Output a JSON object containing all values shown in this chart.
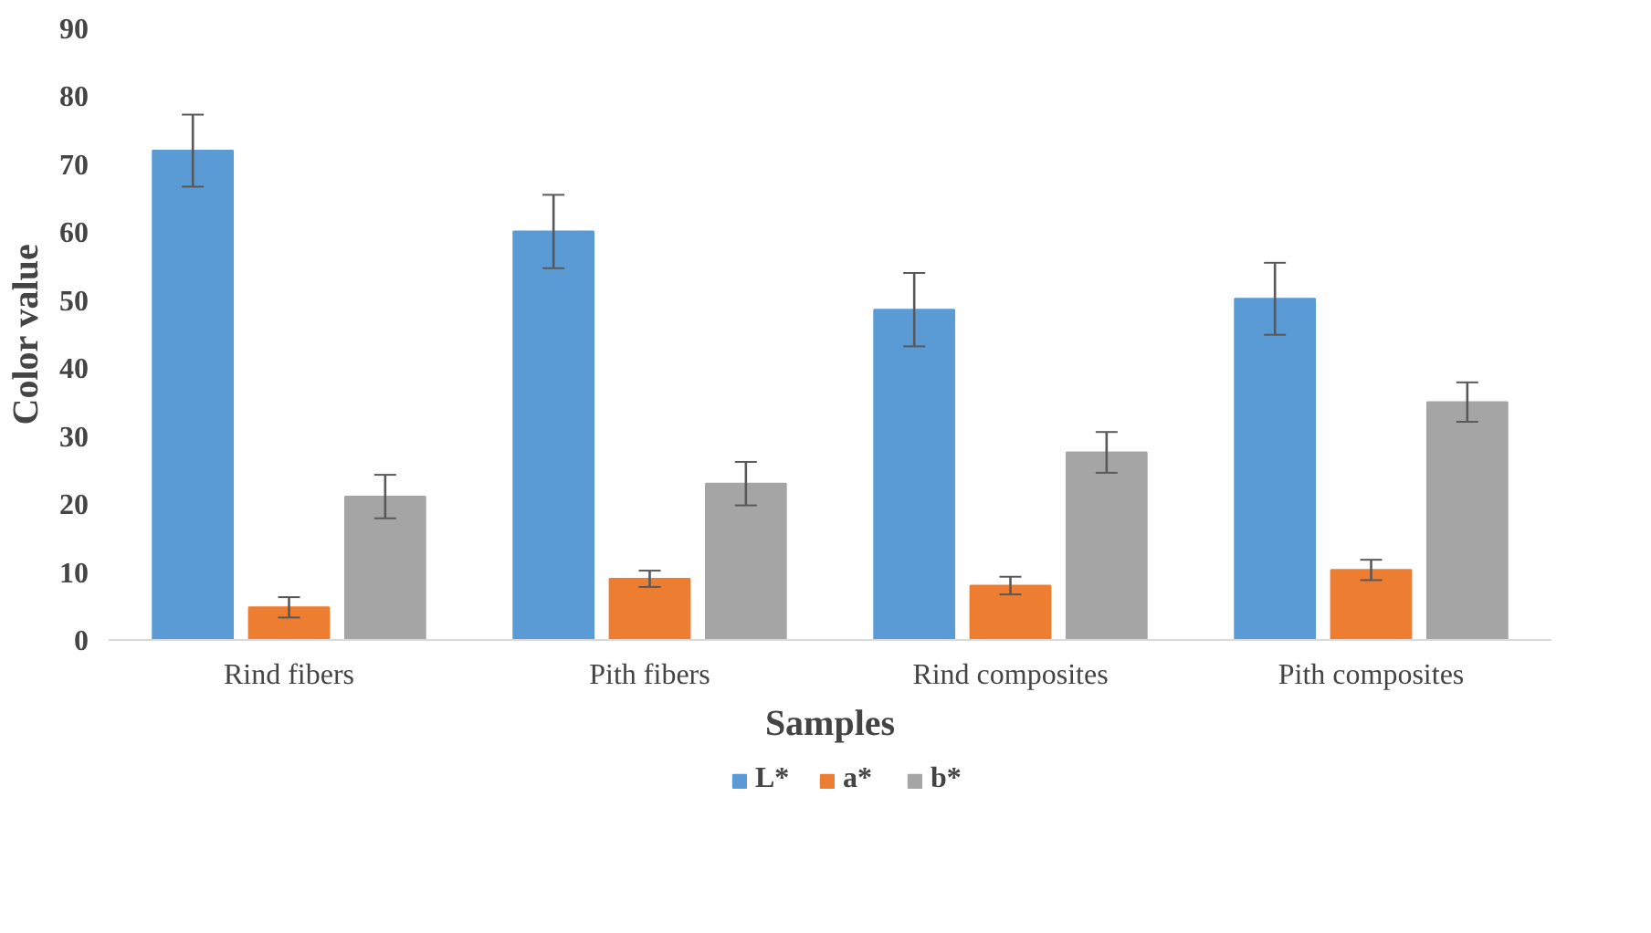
{
  "chart_data": {
    "type": "bar",
    "xlabel": "Samples",
    "ylabel": "Color value",
    "categories": [
      "Rind fibers",
      "Pith fibers",
      "Rind composites",
      "Pith composites"
    ],
    "series": [
      {
        "name": "L*",
        "color": "#5b9bd5",
        "values": [
          72.0,
          60.1,
          48.6,
          50.2
        ],
        "errors": [
          5.3,
          5.4,
          5.4,
          5.3
        ]
      },
      {
        "name": "a*",
        "color": "#ed7d31",
        "values": [
          4.8,
          9.0,
          8.0,
          10.3
        ],
        "errors": [
          1.5,
          1.2,
          1.3,
          1.5
        ]
      },
      {
        "name": "b*",
        "color": "#a5a5a5",
        "values": [
          21.1,
          23.0,
          27.6,
          35.0
        ],
        "errors": [
          3.2,
          3.2,
          3.0,
          2.9
        ]
      }
    ],
    "ylim": [
      0,
      90
    ],
    "yticks": [
      0,
      10,
      20,
      30,
      40,
      50,
      60,
      70,
      80,
      90
    ],
    "grid": false,
    "legend": "bottom"
  }
}
